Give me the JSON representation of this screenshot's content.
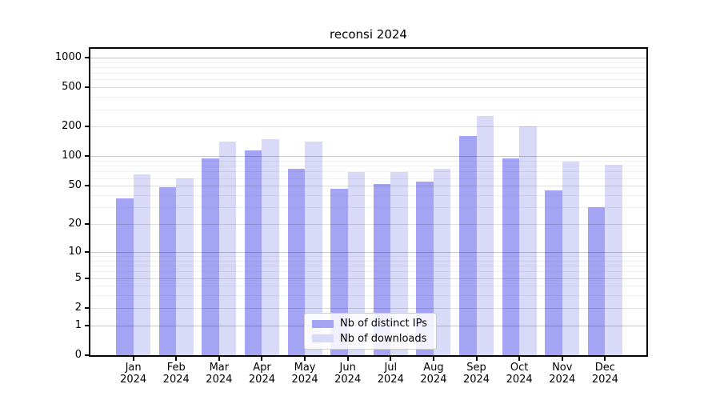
{
  "chart_data": {
    "type": "bar",
    "title": "reconsi 2024",
    "categories": [
      "Jan",
      "Feb",
      "Mar",
      "Apr",
      "May",
      "Jun",
      "Jul",
      "Aug",
      "Sep",
      "Oct",
      "Nov",
      "Dec"
    ],
    "category_year": "2024",
    "series": [
      {
        "name": "Nb of distinct IPs",
        "color": "#a4a4f4",
        "values": [
          37,
          48,
          96,
          114,
          75,
          47,
          52,
          55,
          161,
          96,
          45,
          30
        ]
      },
      {
        "name": "Nb of downloads",
        "color": "#d9d9f8",
        "values": [
          65,
          60,
          140,
          150,
          140,
          69,
          69,
          74,
          257,
          200,
          89,
          82
        ]
      }
    ],
    "xlabel": "",
    "ylabel": "",
    "y_axis": {
      "scale": "log1p",
      "tick_labels": [
        "0",
        "1",
        "2",
        "5",
        "10",
        "20",
        "50",
        "100",
        "200",
        "500",
        "1000"
      ],
      "ticks": [
        0,
        1,
        2,
        5,
        10,
        20,
        50,
        100,
        200,
        500,
        1000
      ],
      "decade_ticks": [
        1,
        10,
        100,
        1000
      ],
      "minor_ticks": [
        3,
        4,
        6,
        7,
        8,
        9,
        30,
        40,
        60,
        70,
        80,
        90,
        300,
        400,
        600,
        700,
        800,
        900
      ]
    },
    "grid": true,
    "legend_position": "lower center",
    "colors": {
      "spine": "#000000",
      "grid_decade": "rgba(0,0,0,0.22)",
      "grid_major": "rgba(0,0,0,0.13)",
      "grid_minor": "rgba(0,0,0,0.055)",
      "legend_border": "#cccccc",
      "legend_background": "rgba(255,255,255,0.85)",
      "text": "#000000"
    }
  }
}
